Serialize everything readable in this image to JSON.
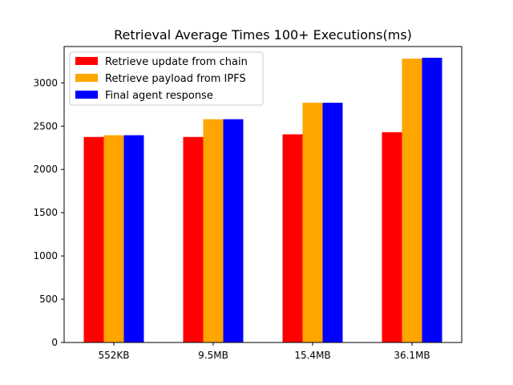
{
  "chart_data": {
    "type": "bar",
    "title": "Retrieval Average Times 100+ Executions(ms)",
    "xlabel": "",
    "ylabel": "",
    "categories": [
      "552KB",
      "9.5MB",
      "15.4MB",
      "36.1MB"
    ],
    "series": [
      {
        "name": "Retrieve update from chain",
        "color": "#ff0000",
        "values": [
          2375,
          2375,
          2405,
          2430
        ]
      },
      {
        "name": "Retrieve payload from IPFS",
        "color": "#ffa500",
        "values": [
          2395,
          2580,
          2770,
          3280
        ]
      },
      {
        "name": "Final agent response",
        "color": "#0000ff",
        "values": [
          2395,
          2580,
          2770,
          3290
        ]
      }
    ],
    "ylim": [
      0,
      3420
    ],
    "yticks": [
      0,
      500,
      1000,
      1500,
      2000,
      2500,
      3000
    ],
    "grid": false,
    "legend_position": "top-left"
  }
}
